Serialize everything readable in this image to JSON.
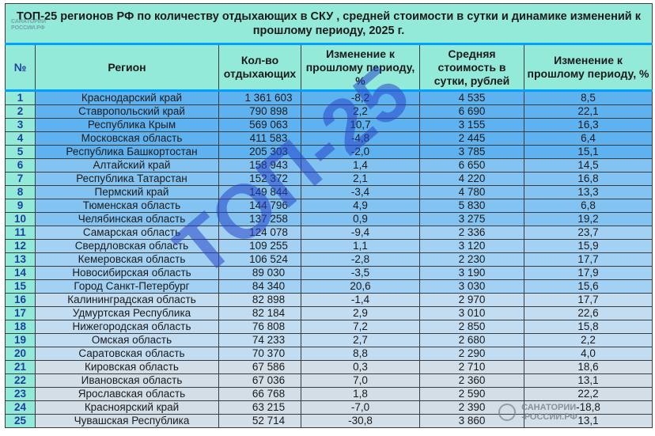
{
  "title": {
    "line1": "ТОП-25 регионов РФ по количеству отдыхающих в СКУ , средней стоимости в сутки и динамике изменений к",
    "line2": "прошлому периоду, 2025 г."
  },
  "logo_top_left": [
    "САНАТОРИИ",
    "РОССИИ.РФ"
  ],
  "columns": {
    "num": "№",
    "region": "Регион",
    "visitors": "Кол-во отдыхающих",
    "change1": "Изменение к прошлому периоду, %",
    "price": "Средняя стоимость в сутки, рублей",
    "change2": "Изменение к прошлому периоду, %"
  },
  "rows": [
    {
      "n": "1",
      "region": "Краснодарский край",
      "visitors": "1 361 603",
      "change1": "-8,2",
      "price": "4 535",
      "change2": "8,5"
    },
    {
      "n": "2",
      "region": "Ставропольский край",
      "visitors": "790 898",
      "change1": "2,2",
      "price": "6 690",
      "change2": "22,1"
    },
    {
      "n": "3",
      "region": "Республика Крым",
      "visitors": "569 063",
      "change1": "10,7",
      "price": "3 155",
      "change2": "16,3"
    },
    {
      "n": "4",
      "region": "Московская область",
      "visitors": "411 583",
      "change1": "-4,8",
      "price": "2 445",
      "change2": "6,4"
    },
    {
      "n": "5",
      "region": "Республика Башкортостан",
      "visitors": "205 303",
      "change1": "-2,0",
      "price": "3 785",
      "change2": "15,1"
    },
    {
      "n": "6",
      "region": "Алтайский край",
      "visitors": "158 943",
      "change1": "1,4",
      "price": "6 650",
      "change2": "14,5"
    },
    {
      "n": "7",
      "region": "Республика Татарстан",
      "visitors": "152 372",
      "change1": "2,1",
      "price": "4 220",
      "change2": "16,8"
    },
    {
      "n": "8",
      "region": "Пермский край",
      "visitors": "149 844",
      "change1": "-3,4",
      "price": "4 780",
      "change2": "13,3"
    },
    {
      "n": "9",
      "region": "Тюменская область",
      "visitors": "144 796",
      "change1": "4,9",
      "price": "5 830",
      "change2": "6,8"
    },
    {
      "n": "10",
      "region": "Челябинская область",
      "visitors": "137 258",
      "change1": "0,9",
      "price": "3 275",
      "change2": "19,2"
    },
    {
      "n": "11",
      "region": "Самарская область",
      "visitors": "124 078",
      "change1": "-9,4",
      "price": "2 336",
      "change2": "23,7"
    },
    {
      "n": "12",
      "region": "Свердловская область",
      "visitors": "109 255",
      "change1": "1,1",
      "price": "3 120",
      "change2": "15,9"
    },
    {
      "n": "13",
      "region": "Кемеровская область",
      "visitors": "106 524",
      "change1": "-2,8",
      "price": "2 230",
      "change2": "17,7"
    },
    {
      "n": "14",
      "region": "Новосибирская область",
      "visitors": "89 030",
      "change1": "-3,5",
      "price": "3 190",
      "change2": "17,9"
    },
    {
      "n": "15",
      "region": "Город Санкт-Петербург",
      "visitors": "84 340",
      "change1": "20,6",
      "price": "3 030",
      "change2": "15,6"
    },
    {
      "n": "16",
      "region": "Калининградская область",
      "visitors": "82 898",
      "change1": "-1,4",
      "price": "2 970",
      "change2": "17,7"
    },
    {
      "n": "17",
      "region": "Удмуртская Республика",
      "visitors": "82 184",
      "change1": "2,9",
      "price": "3 010",
      "change2": "22,6"
    },
    {
      "n": "18",
      "region": "Нижегородская область",
      "visitors": "76 808",
      "change1": "7,2",
      "price": "2 850",
      "change2": "15,8"
    },
    {
      "n": "19",
      "region": "Омская область",
      "visitors": "74 233",
      "change1": "2,7",
      "price": "2 680",
      "change2": "2,2"
    },
    {
      "n": "20",
      "region": "Саратовская область",
      "visitors": "70 370",
      "change1": "8,8",
      "price": "2 290",
      "change2": "4,0"
    },
    {
      "n": "21",
      "region": "Кировская область",
      "visitors": "67 586",
      "change1": "0,3",
      "price": "2 710",
      "change2": "18,6"
    },
    {
      "n": "22",
      "region": "Ивановская область",
      "visitors": "67 036",
      "change1": "7,0",
      "price": "2 360",
      "change2": "13,1"
    },
    {
      "n": "23",
      "region": "Ярославская область",
      "visitors": "66 768",
      "change1": "1,8",
      "price": "2 590",
      "change2": "22,2"
    },
    {
      "n": "24",
      "region": "Красноярский край",
      "visitors": "63 215",
      "change1": "-7,0",
      "price": "2 390",
      "change2": "-18,8"
    },
    {
      "n": "25",
      "region": "Чувашская Республика",
      "visitors": "52 714",
      "change1": "-30,8",
      "price": "3 860",
      "change2": "13,1"
    }
  ],
  "watermark": "ТОП-25",
  "logo_bottom_right": [
    "САНАТОРИИ",
    "-РОССИИ.РФ"
  ],
  "colors": {
    "header_bg": "#93ead9",
    "group_bands": [
      "#5fb2f0",
      "#82c3f2",
      "#a2d1f4",
      "#c2ddf2",
      "#d3dfe8"
    ],
    "negative": "#c4121a",
    "positive": "#2a7a3a"
  }
}
